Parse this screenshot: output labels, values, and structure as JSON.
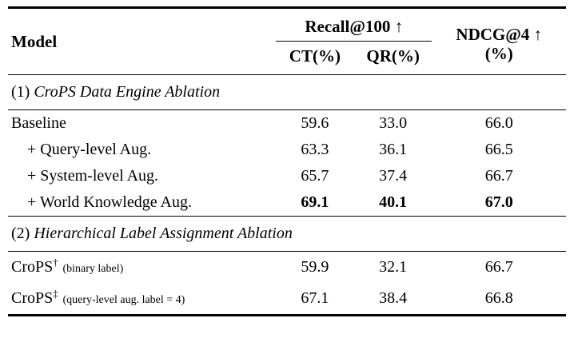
{
  "table": {
    "header": {
      "model": "Model",
      "recall_group": "Recall@100 ↑",
      "ct": "CT(%)",
      "qr": "QR(%)",
      "ndcg_line1": "NDCG@4 ↑",
      "ndcg_line2": "(%)"
    },
    "sections": [
      {
        "prefix": "(1)",
        "title": "CroPS Data Engine Ablation",
        "rows": [
          {
            "model": "Baseline",
            "ct": "59.6",
            "qr": "33.0",
            "ndcg": "66.0"
          },
          {
            "model": "+ Query-level Aug.",
            "ct": "63.3",
            "qr": "36.1",
            "ndcg": "66.5"
          },
          {
            "model": "+ System-level Aug.",
            "ct": "65.7",
            "qr": "37.4",
            "ndcg": "66.7"
          },
          {
            "model": "+ World Knowledge Aug.",
            "ct": "69.1",
            "qr": "40.1",
            "ndcg": "67.0"
          }
        ]
      },
      {
        "prefix": "(2)",
        "title": "Hierarchical Label Assignment Ablation",
        "rows": [
          {
            "name": "CroPS",
            "sup": "†",
            "note": "(binary label)",
            "ct": "59.9",
            "qr": "32.1",
            "ndcg": "66.7"
          },
          {
            "name": "CroPS",
            "sup": "‡",
            "note": "(query-level aug. label = 4)",
            "ct": "67.1",
            "qr": "38.4",
            "ndcg": "66.8"
          }
        ]
      }
    ]
  }
}
